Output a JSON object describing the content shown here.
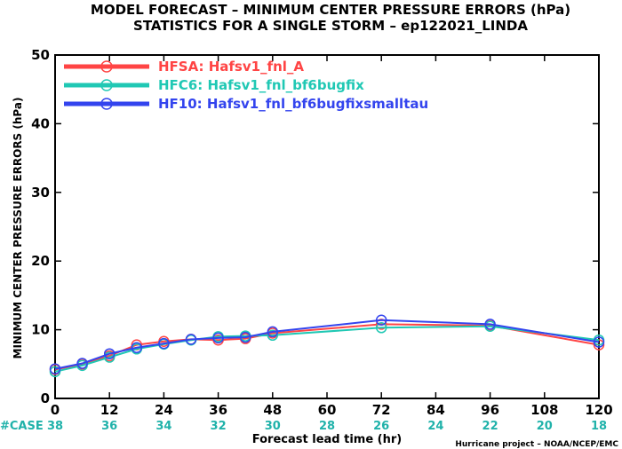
{
  "chart_data": {
    "type": "line",
    "title": "MODEL FORECAST – MINIMUM CENTER PRESSURE ERRORS (hPa)",
    "subtitle": "STATISTICS FOR A SINGLE STORM – ep122021_LINDA",
    "xlabel": "Forecast lead time (hr)",
    "ylabel": "MINIMUM CENTER PRESSURE ERRORS (hPa)",
    "xlim": [
      0,
      120
    ],
    "ylim": [
      0,
      50
    ],
    "x_ticks": [
      "0",
      "12",
      "24",
      "36",
      "48",
      "60",
      "72",
      "84",
      "96",
      "108",
      "120"
    ],
    "y_ticks": [
      "0",
      "10",
      "20",
      "30",
      "40",
      "50"
    ],
    "grid": false,
    "legend_position": "top-left",
    "case_label": "#CASE",
    "case_counts": [
      "38",
      "36",
      "34",
      "32",
      "30",
      "28",
      "26",
      "24",
      "22",
      "20",
      "18"
    ],
    "credit": "Hurricane project – NOAA/NCEP/EMC",
    "series": [
      {
        "name": "HFSA: Hafsv1_fnl_A",
        "color": "#ff4444",
        "x": [
          0,
          6,
          12,
          18,
          24,
          30,
          36,
          42,
          48,
          72,
          96,
          120
        ],
        "y": [
          4.2,
          5.0,
          6.2,
          7.8,
          8.3,
          8.6,
          8.5,
          8.7,
          9.5,
          10.8,
          10.6,
          7.8
        ]
      },
      {
        "name": "HFC6: Hafsv1_fnl_bf6bugfix",
        "color": "#20c8b4",
        "x": [
          0,
          6,
          12,
          18,
          24,
          30,
          36,
          42,
          48,
          72,
          96,
          120
        ],
        "y": [
          3.9,
          4.8,
          6.0,
          7.2,
          7.9,
          8.5,
          9.0,
          9.1,
          9.2,
          10.3,
          10.5,
          8.5
        ]
      },
      {
        "name": "HF10: Hafsv1_fnl_bf6bugfixsmalltau",
        "color": "#3344ee",
        "x": [
          0,
          6,
          12,
          18,
          24,
          30,
          36,
          42,
          48,
          72,
          96,
          120
        ],
        "y": [
          4.3,
          5.1,
          6.5,
          7.4,
          8.0,
          8.6,
          8.8,
          8.9,
          9.7,
          11.4,
          10.8,
          8.2
        ]
      }
    ]
  }
}
